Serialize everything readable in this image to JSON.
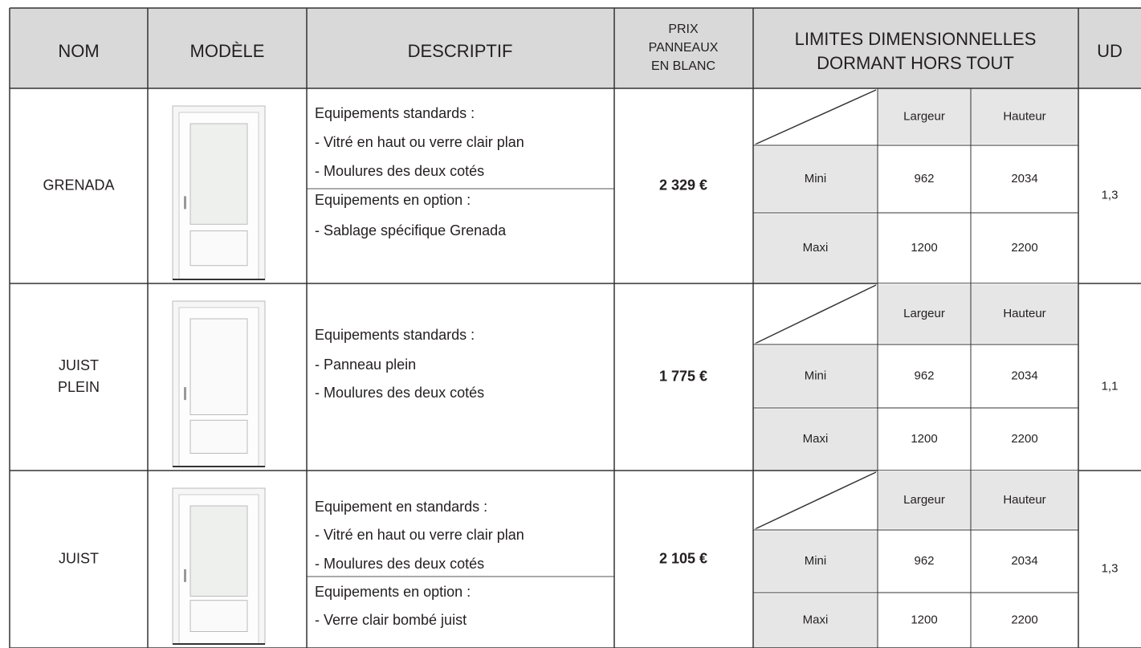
{
  "header": {
    "nom": "NOM",
    "modele": "MODÈLE",
    "descriptif": "DESCRIPTIF",
    "prix": [
      "PRIX",
      "PANNEAUX",
      "EN BLANC"
    ],
    "limites": [
      "LIMITES DIMENSIONNELLES",
      "DORMANT HORS TOUT"
    ],
    "ud": "UD"
  },
  "rows": [
    {
      "nom": [
        "GRENADA"
      ],
      "descriptif": [
        [
          "Equipements standards :",
          "- Vitré en haut ou verre clair plan",
          "- Moulures des deux cotés"
        ],
        [
          "Equipements en option :",
          "- Sablage spécifique Grenada"
        ]
      ],
      "prix": "2 329 €",
      "largeur": "Largeur",
      "hauteur": "Hauteur",
      "mini": [
        "Mini",
        "962",
        "2034"
      ],
      "maxi": [
        "Maxi",
        "1200",
        "2200"
      ],
      "ud": "1,3"
    },
    {
      "nom": [
        "JUIST",
        "PLEIN"
      ],
      "descriptif": [
        [
          "Equipements standards :",
          "- Panneau plein",
          "- Moulures des deux cotés"
        ]
      ],
      "prix": "1 775 €",
      "largeur": "Largeur",
      "hauteur": "Hauteur",
      "mini": [
        "Mini",
        "962",
        "2034"
      ],
      "maxi": [
        "Maxi",
        "1200",
        "2200"
      ],
      "ud": "1,1"
    },
    {
      "nom": [
        "JUIST"
      ],
      "descriptif": [
        [
          "Equipement en standards :",
          "- Vitré en haut ou verre clair plan",
          "- Moulures des deux cotés"
        ],
        [
          "Equipements en option :",
          "- Verre clair bombé juist"
        ]
      ],
      "prix": "2 105 €",
      "largeur": "Largeur",
      "hauteur": "Hauteur",
      "mini": [
        "Mini",
        "962",
        "2034"
      ],
      "maxi": [
        "Maxi",
        "1200",
        "2200"
      ],
      "ud": "1,3"
    }
  ]
}
